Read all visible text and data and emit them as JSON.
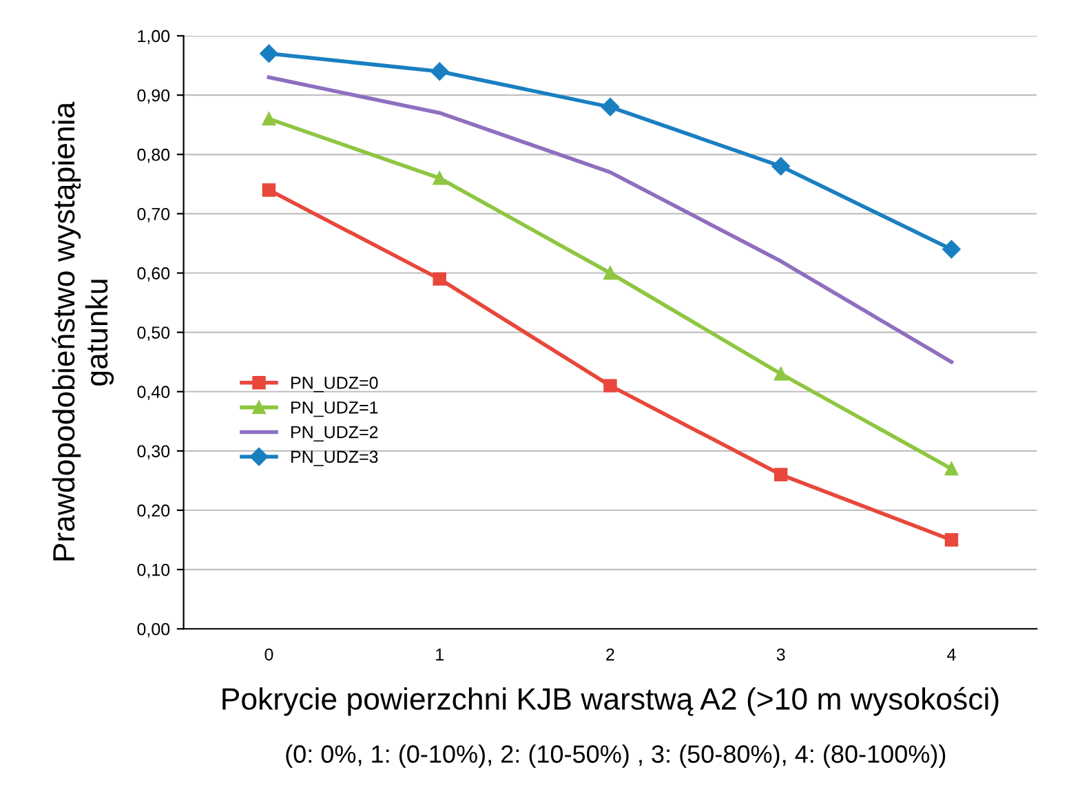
{
  "chart_data": {
    "type": "line",
    "xlabel": "Pokrycie powierzchni KJB warstwą A2 (>10 m wysokości)",
    "ylabel": "Prawdopodobieństwo wystąpienia\ngatunku",
    "annotations": [
      "(0: 0%, 1: (0-10%), 2: (10-50%) , 3: (50-80%), 4: (80-100%))"
    ],
    "categories": [
      "0",
      "1",
      "2",
      "3",
      "4"
    ],
    "series": [
      {
        "name": "PN_UDZ=0",
        "color": "#e8473c",
        "marker": "square",
        "values": [
          0.74,
          0.59,
          0.41,
          0.26,
          0.15
        ]
      },
      {
        "name": "PN_UDZ=1",
        "color": "#8ec641",
        "marker": "triangle",
        "values": [
          0.86,
          0.76,
          0.6,
          0.43,
          0.27
        ]
      },
      {
        "name": "PN_UDZ=2",
        "color": "#8e6fbf",
        "marker": "none",
        "values": [
          0.93,
          0.87,
          0.77,
          0.62,
          0.45
        ]
      },
      {
        "name": "PN_UDZ=3",
        "color": "#1a7fc1",
        "marker": "diamond",
        "values": [
          0.97,
          0.94,
          0.88,
          0.78,
          0.64
        ]
      }
    ],
    "ylim": [
      0,
      1
    ],
    "yticks": [
      {
        "value": 0,
        "label": "0,00"
      },
      {
        "value": 0.1,
        "label": "0,10"
      },
      {
        "value": 0.2,
        "label": "0,20"
      },
      {
        "value": 0.3,
        "label": "0,30"
      },
      {
        "value": 0.4,
        "label": "0,40"
      },
      {
        "value": 0.5,
        "label": "0,50"
      },
      {
        "value": 0.6,
        "label": "0,60"
      },
      {
        "value": 0.7,
        "label": "0,70"
      },
      {
        "value": 0.8,
        "label": "0,80"
      },
      {
        "value": 0.9,
        "label": "0,90"
      },
      {
        "value": 1.0,
        "label": "1,00"
      }
    ],
    "grid": "y",
    "legend": "center left",
    "line_style": "solid"
  }
}
